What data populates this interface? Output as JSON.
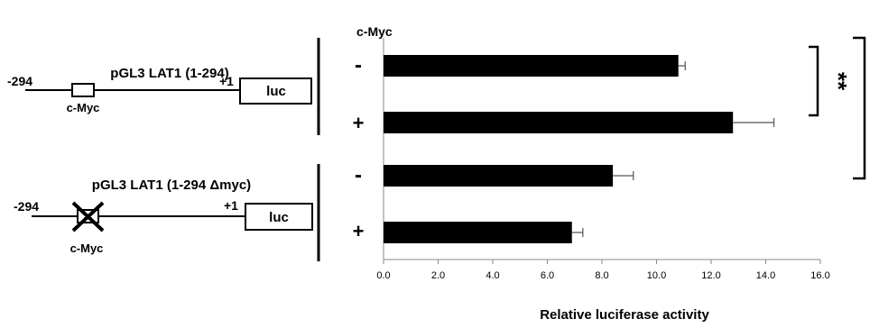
{
  "header": {
    "cmyc_label": "c-Myc"
  },
  "constructs": [
    {
      "name": "pGL3 LAT1 (1-294)",
      "start_label": "-294",
      "tss_label": "+1",
      "reporter_label": "luc",
      "site_label": "c-Myc",
      "site_deleted": false
    },
    {
      "name": "pGL3 LAT1 (1-294 Δmyc)",
      "start_label": "-294",
      "tss_label": "+1",
      "reporter_label": "luc",
      "site_label": "c-Myc",
      "site_deleted": true
    }
  ],
  "treatment_labels": [
    "-",
    "+",
    "-",
    "+"
  ],
  "significance": [
    {
      "label": "**",
      "bracket_rows": [
        0,
        1
      ]
    },
    {
      "label": "*",
      "bracket_rows": [
        0,
        2
      ]
    }
  ],
  "chart_data": {
    "type": "bar",
    "orientation": "horizontal",
    "categories": [
      "-",
      "+",
      "-",
      "+"
    ],
    "values": [
      10.8,
      12.8,
      8.4,
      6.9
    ],
    "errors": [
      0.25,
      1.5,
      0.75,
      0.4
    ],
    "xlabel": "Relative luciferase activity",
    "xlim": [
      0,
      16
    ],
    "xticks": [
      "0.0",
      "2.0",
      "4.0",
      "6.0",
      "8.0",
      "10.0",
      "12.0",
      "14.0",
      "16.0"
    ],
    "bar_color": "#000000",
    "grid": false
  }
}
